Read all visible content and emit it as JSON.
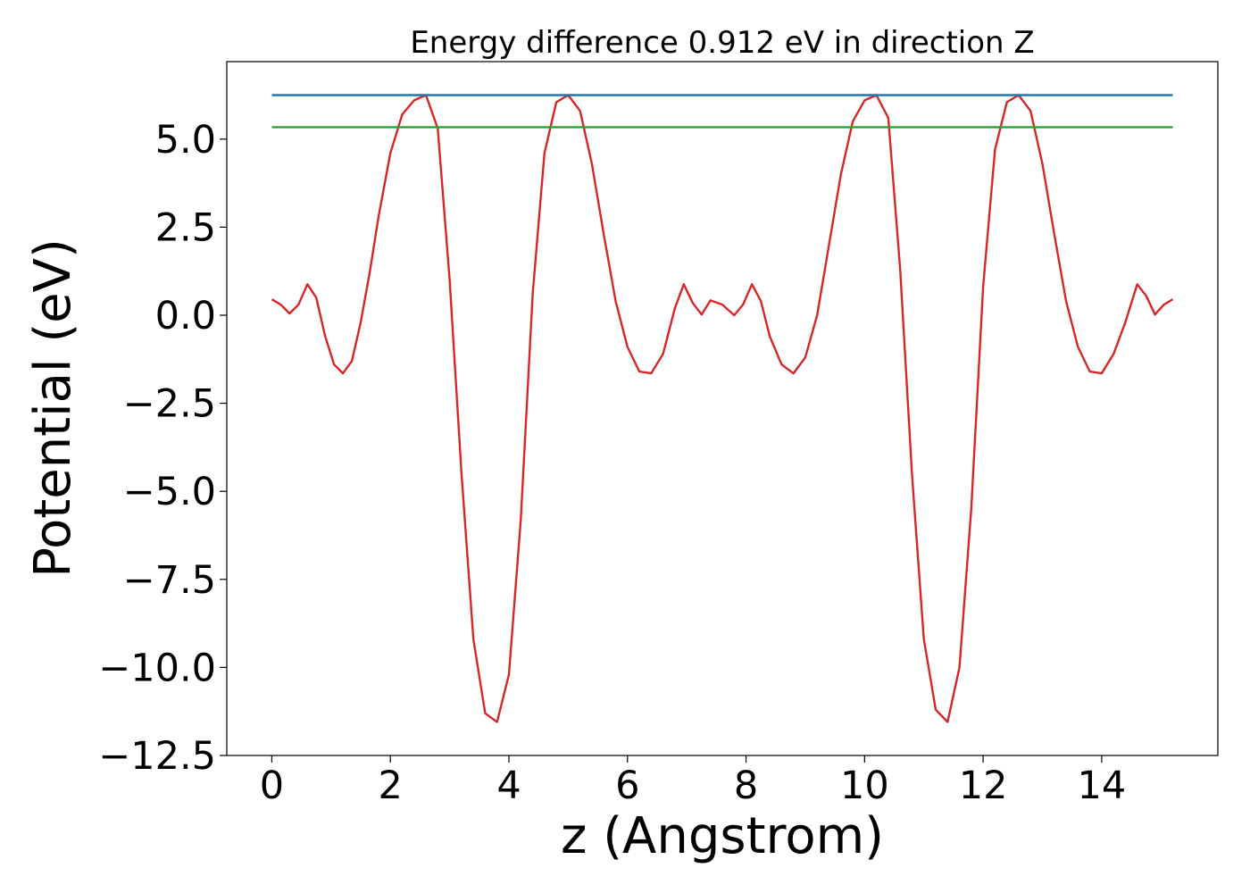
{
  "chart_data": {
    "type": "line",
    "title": "Energy difference 0.912 eV in direction Z",
    "xlabel": "z (Angstrom)",
    "ylabel": "Potential (eV)",
    "xlim": [
      -0.76,
      15.96
    ],
    "ylim": [
      -12.5,
      7.2
    ],
    "xticks": [
      0,
      2,
      4,
      6,
      8,
      10,
      12,
      14
    ],
    "xtick_labels": [
      "0",
      "2",
      "4",
      "6",
      "8",
      "10",
      "12",
      "14"
    ],
    "yticks": [
      5.0,
      2.5,
      0.0,
      -2.5,
      -5.0,
      -7.5,
      -10.0,
      -12.5
    ],
    "ytick_labels": [
      "5.0",
      "2.5",
      "0.0",
      "−2.5",
      "−5.0",
      "−7.5",
      "−10.0",
      "−12.5"
    ],
    "grid": false,
    "series": [
      {
        "color": "#d62728",
        "x": [
          0,
          0.15,
          0.3,
          0.45,
          0.6,
          0.75,
          0.9,
          1.05,
          1.2,
          1.35,
          1.5,
          1.65,
          1.8,
          2.0,
          2.2,
          2.4,
          2.6,
          2.8,
          3.0,
          3.2,
          3.4,
          3.6,
          3.8,
          4.0,
          4.2,
          4.4,
          4.6,
          4.8,
          5.0,
          5.2,
          5.4,
          5.6,
          5.8,
          6.0,
          6.2,
          6.4,
          6.6,
          6.8,
          6.95,
          7.1,
          7.25,
          7.4,
          7.6,
          7.8,
          7.95,
          8.1,
          8.25,
          8.4,
          8.6,
          8.8,
          9.0,
          9.2,
          9.4,
          9.6,
          9.8,
          10.0,
          10.2,
          10.4,
          10.6,
          10.8,
          11.0,
          11.2,
          11.4,
          11.6,
          11.8,
          12.0,
          12.2,
          12.4,
          12.6,
          12.8,
          13.0,
          13.2,
          13.4,
          13.6,
          13.8,
          14.0,
          14.2,
          14.4,
          14.6,
          14.75,
          14.9,
          15.05,
          15.2
        ],
        "y": [
          0.45,
          0.3,
          0.05,
          0.3,
          0.88,
          0.5,
          -0.6,
          -1.4,
          -1.65,
          -1.3,
          -0.2,
          1.2,
          2.8,
          4.6,
          5.7,
          6.1,
          6.25,
          5.3,
          1.0,
          -4.5,
          -9.2,
          -11.3,
          -11.55,
          -10.2,
          -5.8,
          0.6,
          4.6,
          6.05,
          6.25,
          5.8,
          4.3,
          2.3,
          0.4,
          -0.9,
          -1.6,
          -1.65,
          -1.1,
          0.2,
          0.88,
          0.35,
          0.02,
          0.42,
          0.3,
          0.0,
          0.3,
          0.88,
          0.4,
          -0.6,
          -1.4,
          -1.65,
          -1.2,
          0.0,
          2.0,
          4.0,
          5.5,
          6.1,
          6.25,
          5.6,
          1.3,
          -4.5,
          -9.2,
          -11.2,
          -11.55,
          -10.0,
          -5.5,
          0.8,
          4.7,
          6.05,
          6.25,
          5.8,
          4.3,
          2.3,
          0.4,
          -0.9,
          -1.6,
          -1.65,
          -1.1,
          -0.2,
          0.88,
          0.55,
          0.02,
          0.3,
          0.45
        ]
      },
      {
        "color": "#1f77b4",
        "x": [
          0,
          15.2
        ],
        "y": [
          6.25,
          6.25
        ]
      },
      {
        "color": "#2ca02c",
        "x": [
          0,
          15.2
        ],
        "y": [
          5.34,
          5.34
        ]
      }
    ]
  }
}
